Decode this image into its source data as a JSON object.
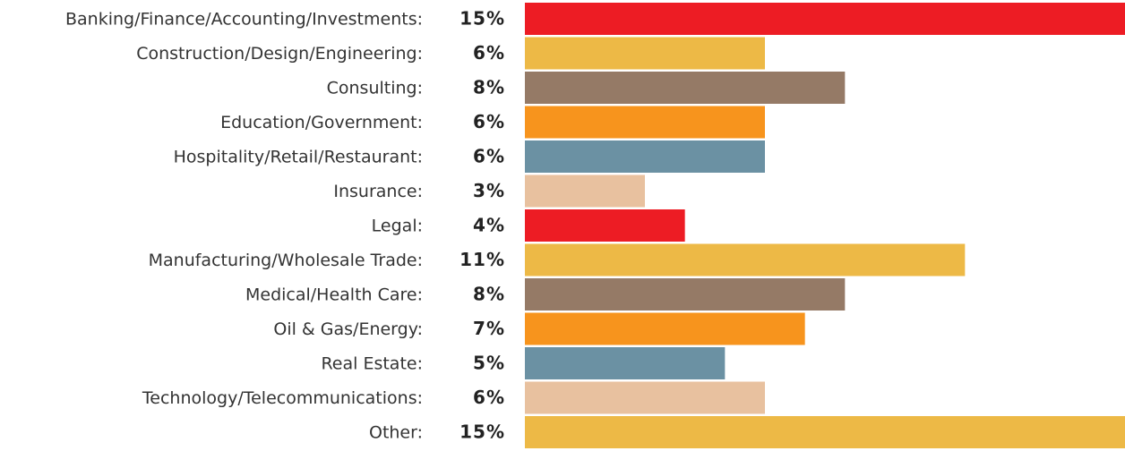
{
  "chart_data": {
    "type": "bar",
    "orientation": "horizontal",
    "categories": [
      "Banking/Finance/Accounting/Investments:",
      "Construction/Design/Engineering:",
      "Consulting:",
      "Education/Government:",
      "Hospitality/Retail/Restaurant:",
      "Insurance:",
      "Legal:",
      "Manufacturing/Wholesale Trade:",
      "Medical/Health Care:",
      "Oil & Gas/Energy:",
      "Real Estate:",
      "Technology/Telecommunications:",
      "Other:"
    ],
    "values": [
      15,
      6,
      8,
      6,
      6,
      3,
      4,
      11,
      8,
      7,
      5,
      6,
      15
    ],
    "value_labels": [
      "15%",
      "6%",
      "8%",
      "6%",
      "6%",
      "3%",
      "4%",
      "11%",
      "8%",
      "7%",
      "5%",
      "6%",
      "15%"
    ],
    "colors": [
      "#ed1c24",
      "#edb946",
      "#957a66",
      "#f7941d",
      "#6b91a3",
      "#e8c19f",
      "#ed1c24",
      "#edb946",
      "#957a66",
      "#f7941d",
      "#6b91a3",
      "#e8c19f",
      "#edb946"
    ]
  }
}
